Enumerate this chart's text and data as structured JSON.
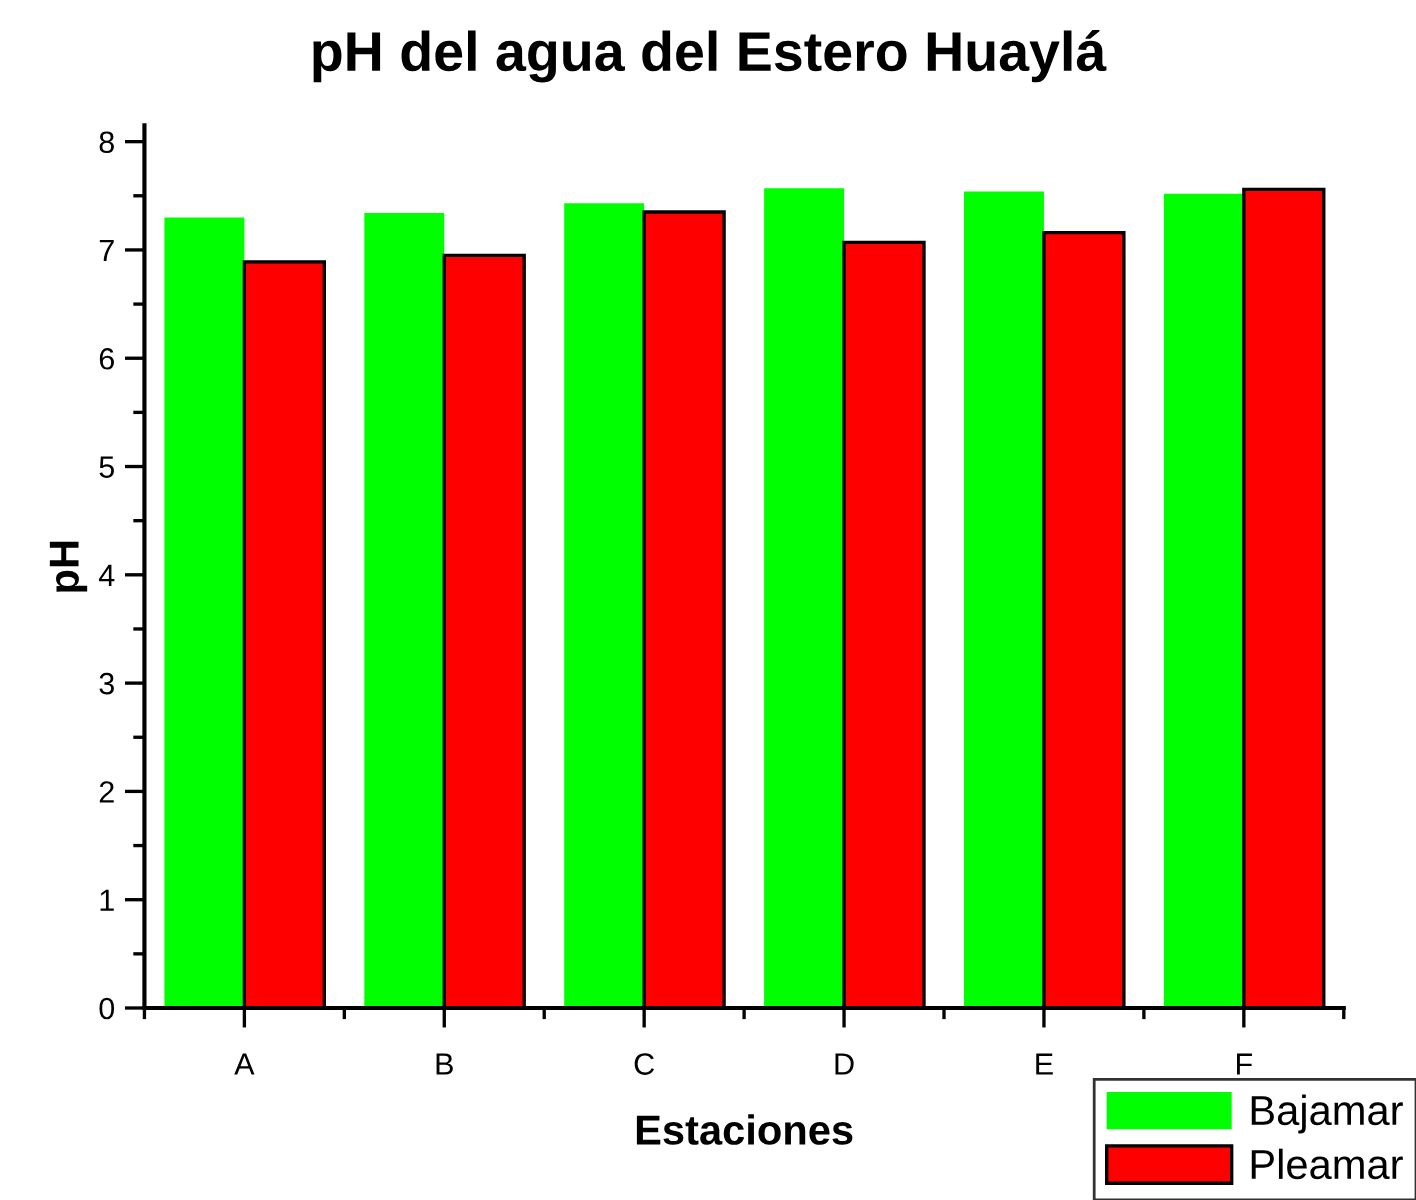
{
  "chart_data": {
    "type": "bar",
    "title": "pH del agua del Estero Huaylá",
    "xlabel": "Estaciones",
    "ylabel": "pH",
    "categories": [
      "A",
      "B",
      "C",
      "D",
      "E",
      "F"
    ],
    "series": [
      {
        "name": "Bajamar",
        "color": "#00ff00",
        "values": [
          7.3,
          7.34,
          7.43,
          7.57,
          7.54,
          7.52
        ]
      },
      {
        "name": "Pleamar",
        "color": "#ff0000",
        "values": [
          6.89,
          6.95,
          7.35,
          7.07,
          7.16,
          7.56
        ]
      }
    ],
    "ylim": [
      0,
      8.15
    ],
    "yticks": [
      0,
      1,
      2,
      3,
      4,
      5,
      6,
      7,
      8
    ],
    "grid": false,
    "legend": "bottom right"
  }
}
